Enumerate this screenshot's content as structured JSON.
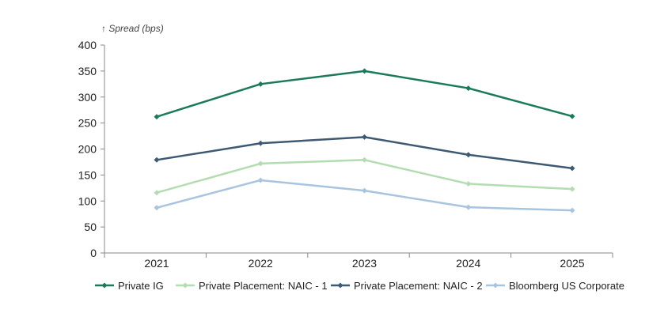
{
  "chart_data": {
    "type": "line",
    "ylabel": "↑ Spread (bps)",
    "xlabel": "",
    "categories": [
      "2021",
      "2022",
      "2023",
      "2024",
      "2025"
    ],
    "ylim": [
      0,
      400
    ],
    "yticks": [
      0,
      50,
      100,
      150,
      200,
      250,
      300,
      350,
      400
    ],
    "grid": false,
    "legend_position": "bottom",
    "series": [
      {
        "name": "Private IG",
        "color": "#1a7a5a",
        "values": [
          262,
          325,
          350,
          317,
          263
        ]
      },
      {
        "name": "Private Placement: NAIC - 1",
        "color": "#b3dcb0",
        "values": [
          116,
          172,
          179,
          133,
          123
        ]
      },
      {
        "name": "Private Placement: NAIC - 2",
        "color": "#3e5a73",
        "values": [
          179,
          211,
          223,
          189,
          163
        ]
      },
      {
        "name": "Bloomberg US Corporate",
        "color": "#a8c4de",
        "values": [
          87,
          140,
          120,
          88,
          82
        ]
      }
    ]
  }
}
